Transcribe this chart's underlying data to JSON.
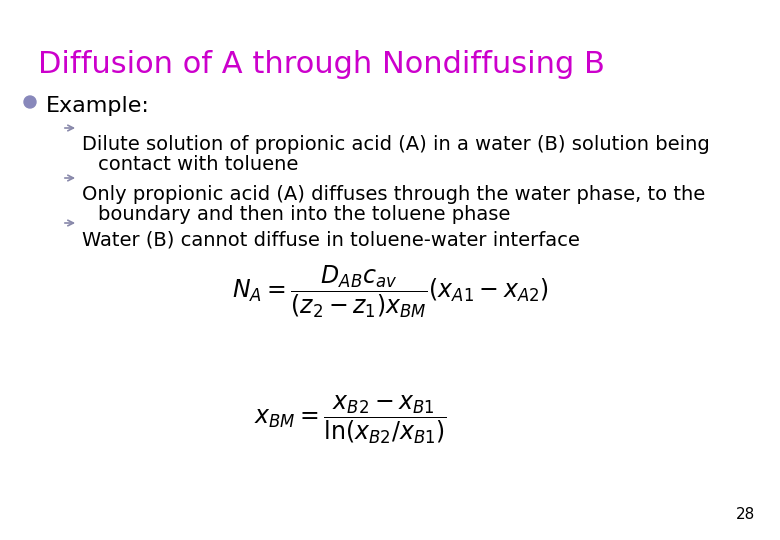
{
  "title": "Diffusion of A through Nondiffusing B",
  "title_color": "#CC00CC",
  "title_fontsize": 22,
  "background_color": "#FFFFFF",
  "bullet_color": "#8888BB",
  "bullet_text": "Example:",
  "bullet_fontsize": 16,
  "sub_bullet_color": "#8888AA",
  "sub_bullet_lines": [
    [
      "Dilute solution of propionic acid (A) in a water (B) solution being",
      "contact with toluene"
    ],
    [
      "Only propionic acid (A) diffuses through the water phase, to the",
      "boundary and then into the toluene phase"
    ],
    [
      "Water (B) cannot diffuse in toluene-water interface"
    ]
  ],
  "sub_bullet_fontsize": 14,
  "eq_fontsize": 17,
  "page_number": "28",
  "page_number_fontsize": 11
}
